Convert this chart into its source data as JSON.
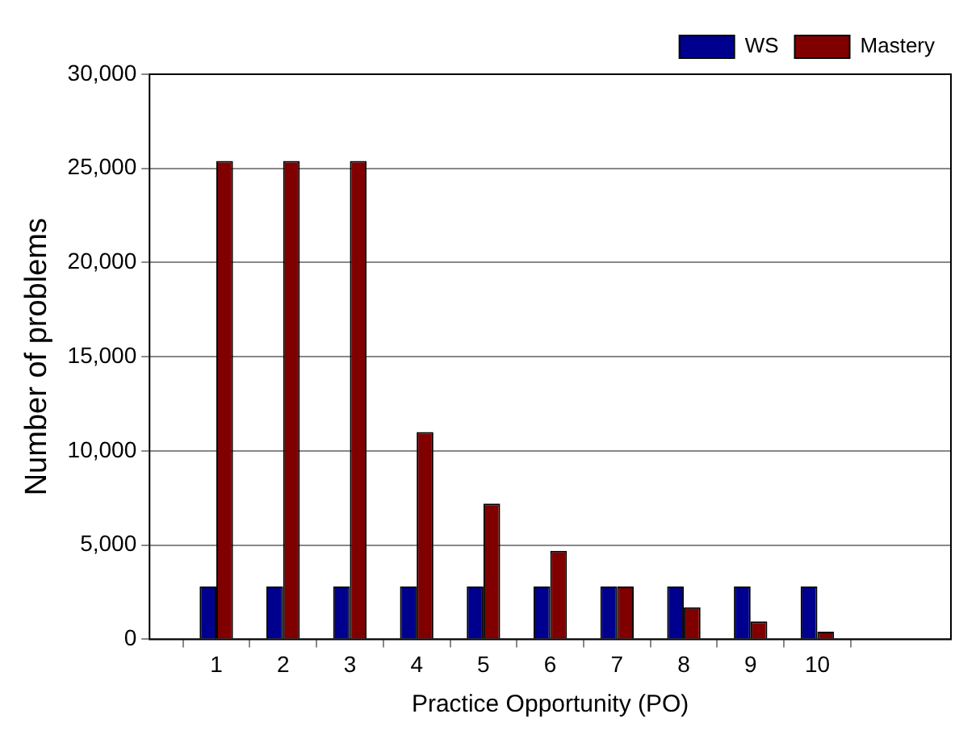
{
  "chart_data": {
    "type": "bar",
    "xlabel": "Practice Opportunity (PO)",
    "ylabel": "Number of problems",
    "x": [
      1,
      2,
      3,
      4,
      5,
      6,
      7,
      8,
      9,
      10
    ],
    "series": [
      {
        "name": "WS",
        "color": "#00008f",
        "values": [
          2800,
          2800,
          2800,
          2800,
          2800,
          2800,
          2800,
          2800,
          2800,
          2800
        ]
      },
      {
        "name": "Mastery",
        "color": "#800000",
        "values": [
          25400,
          25400,
          25400,
          11000,
          7200,
          4700,
          2800,
          1700,
          950,
          400
        ]
      }
    ],
    "xlim": [
      0,
      12
    ],
    "xticks": [
      1,
      2,
      3,
      4,
      5,
      6,
      7,
      8,
      9,
      10
    ],
    "ylim": [
      0,
      30000
    ],
    "yticks": [
      {
        "value": 0,
        "label": "0"
      },
      {
        "value": 5000,
        "label": "5,000"
      },
      {
        "value": 10000,
        "label": "10,000"
      },
      {
        "value": 15000,
        "label": "15,000"
      },
      {
        "value": 20000,
        "label": "20,000"
      },
      {
        "value": 25000,
        "label": "25,000"
      },
      {
        "value": 30000,
        "label": "30,000"
      }
    ],
    "grid": "y",
    "legend": "top right"
  }
}
